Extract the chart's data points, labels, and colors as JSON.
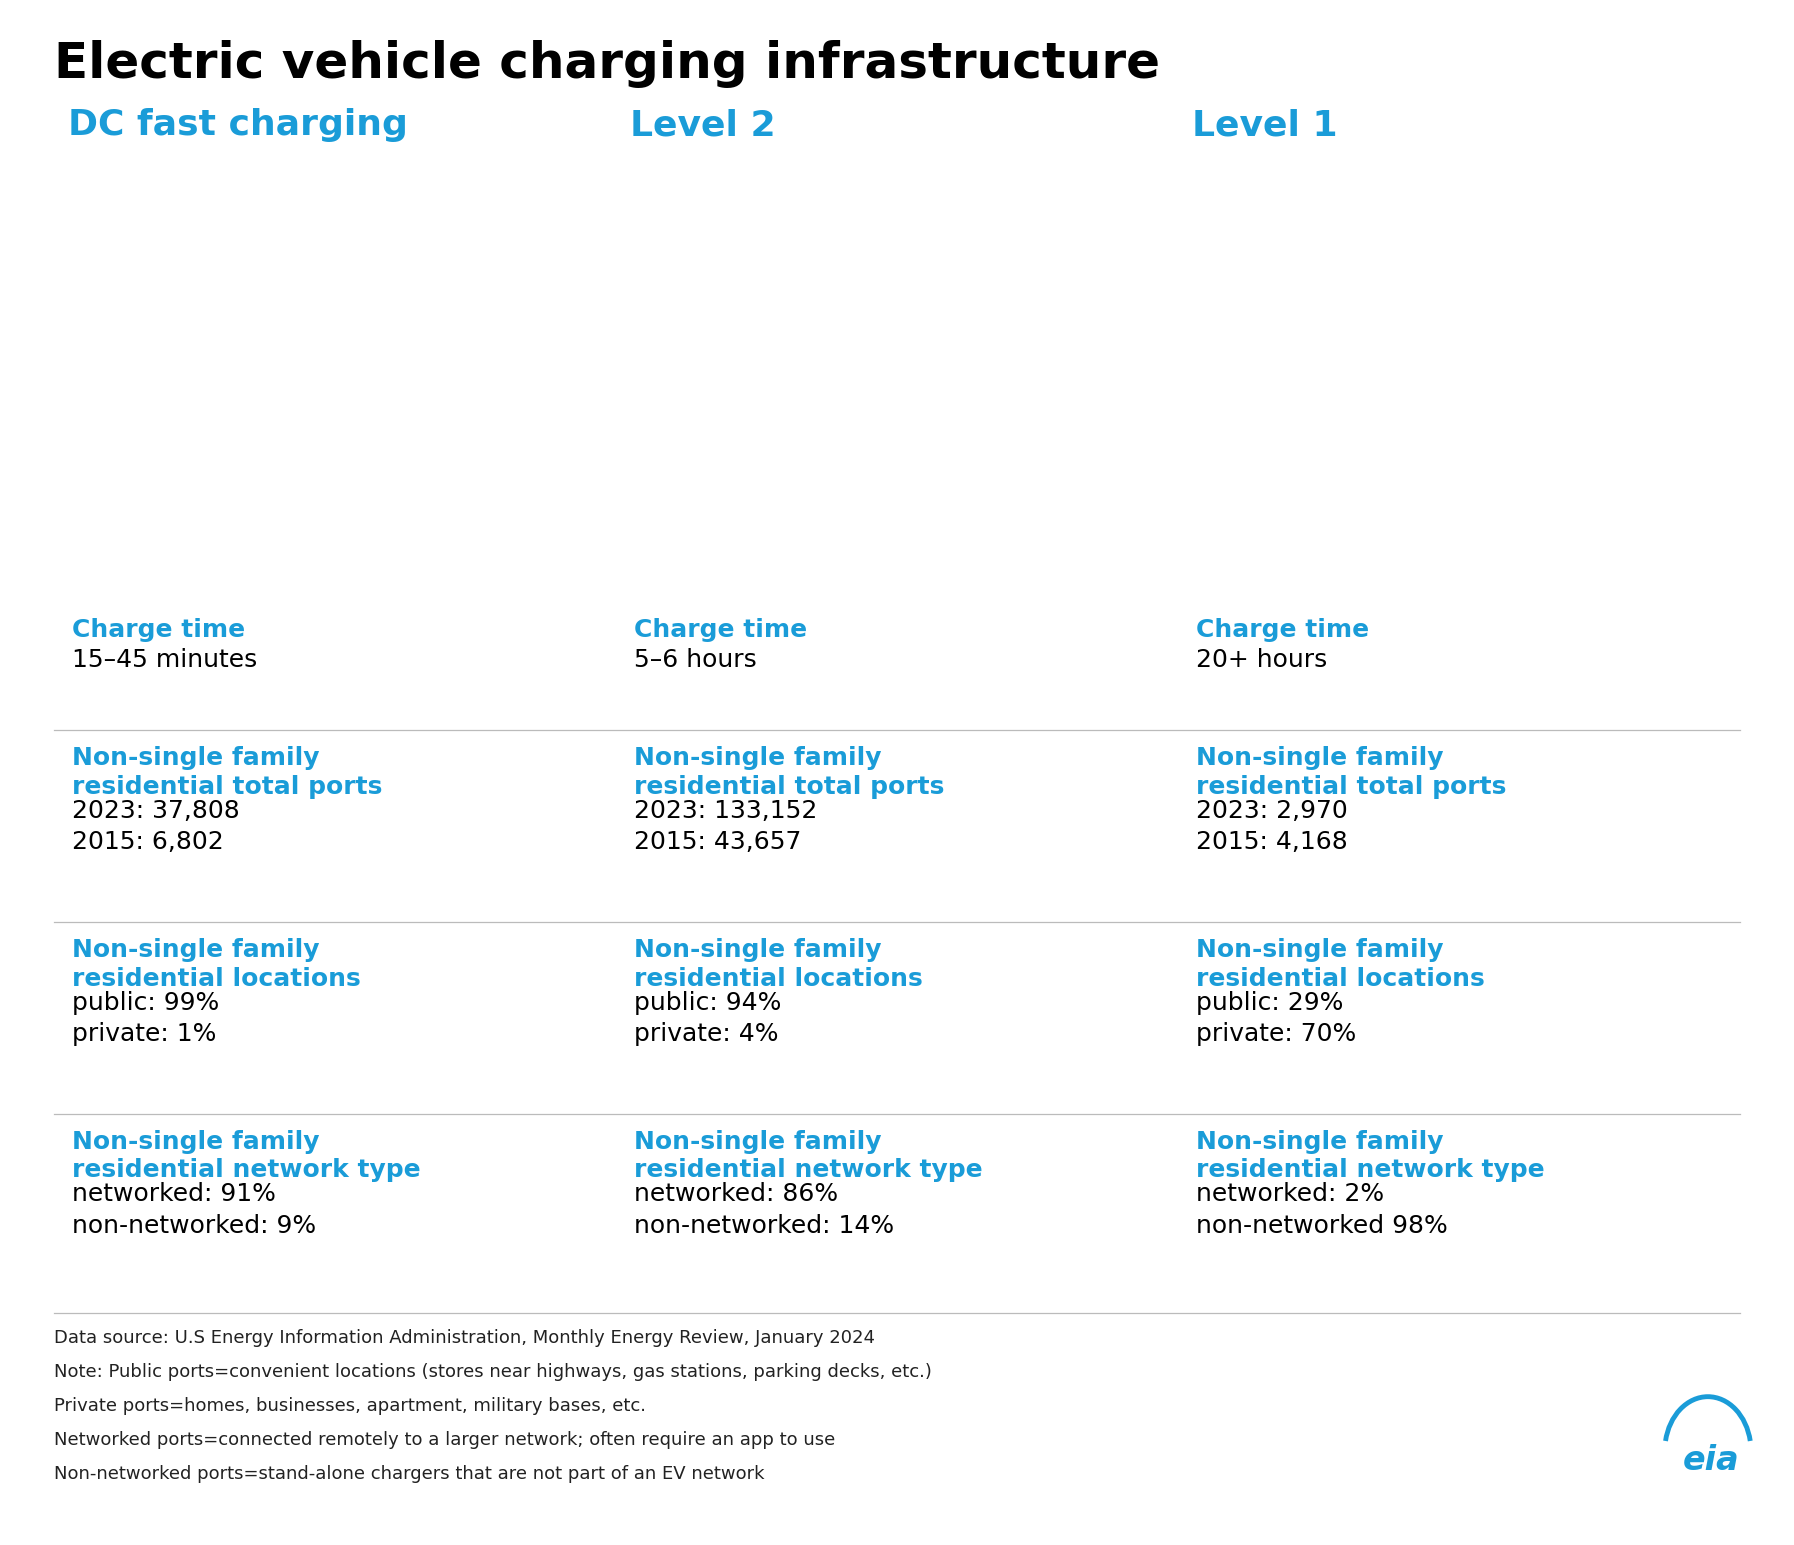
{
  "title": "Electric vehicle charging infrastructure",
  "title_color": "#000000",
  "title_fontsize": 36,
  "columns": [
    "DC fast charging",
    "Level 2",
    "Level 1"
  ],
  "column_color": "#1a9cd8",
  "column_fontsize": 26,
  "bg_color": "#ffffff",
  "section_label_color": "#1a9cd8",
  "section_label_fontsize": 18,
  "section_text_color": "#000000",
  "section_text_fontsize": 18,
  "divider_color": "#bbbbbb",
  "image_bg_colors": [
    "#3a3a5c",
    "#888888",
    "#d8e8c8"
  ],
  "sections": [
    {
      "label": "Charge time",
      "values": [
        "15–45 minutes",
        "5–6 hours",
        "20+ hours"
      ]
    },
    {
      "label": "Non-single family\nresidential total ports",
      "values": [
        "2023: 37,808\n2015: 6,802",
        "2023: 133,152\n2015: 43,657",
        "2023: 2,970\n2015: 4,168"
      ]
    },
    {
      "label": "Non-single family\nresidential locations",
      "values": [
        "public: 99%\nprivate: 1%",
        "public: 94%\nprivate: 4%",
        "public: 29%\nprivate: 70%"
      ]
    },
    {
      "label": "Non-single family\nresidential network type",
      "values": [
        "networked: 91%\nnon-networked: 9%",
        "networked: 86%\nnon-networked: 14%",
        "networked: 2%\nnon-networked 98%"
      ]
    }
  ],
  "footnotes": [
    "Data source: U.S Energy Information Administration, Monthly Energy Review, January 2024",
    "Note: Public ports=convenient locations (stores near highways, gas stations, parking decks, etc.)",
    "Private ports=homes, businesses, apartment, military bases, etc.",
    "Networked ports=connected remotely to a larger network; often require an app to use",
    "Non-networked ports=stand-alone chargers that are not part of an EV network"
  ],
  "footnote_fontsize": 13,
  "footnote_color": "#222222"
}
